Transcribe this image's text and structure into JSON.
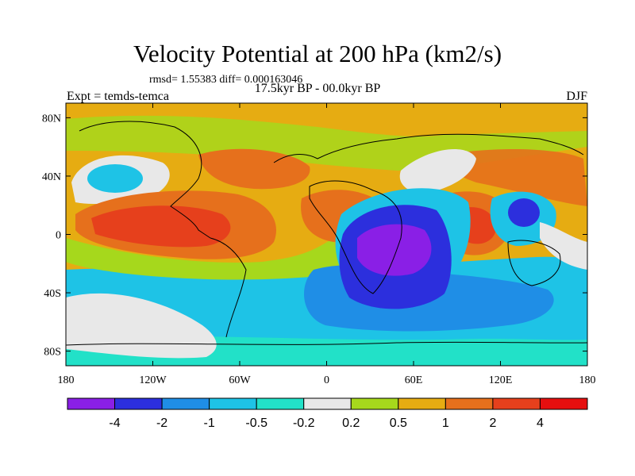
{
  "header": {
    "title": "Velocity Potential at 200 hPa (km2/s)",
    "stats": "rmsd= 1.55383 diff= 0.000163046",
    "period": "17.5kyr BP - 00.0kyr BP",
    "experiment": "Expt = temds-temca",
    "season": "DJF"
  },
  "map": {
    "projection": "cylindrical-equidistant",
    "lon_range": [
      -180,
      180
    ],
    "lat_range": [
      -90,
      90
    ],
    "lon_ticks": [
      {
        "value": -180,
        "label": "180"
      },
      {
        "value": -120,
        "label": "120W"
      },
      {
        "value": -60,
        "label": "60W"
      },
      {
        "value": 0,
        "label": "0"
      },
      {
        "value": 60,
        "label": "60E"
      },
      {
        "value": 120,
        "label": "120E"
      },
      {
        "value": 180,
        "label": "180"
      }
    ],
    "lat_ticks": [
      {
        "value": 80,
        "label": "80N"
      },
      {
        "value": 40,
        "label": "40N"
      },
      {
        "value": 0,
        "label": "0"
      },
      {
        "value": -40,
        "label": "40S"
      },
      {
        "value": -80,
        "label": "80S"
      }
    ]
  },
  "colorbar": {
    "levels": [
      "-4",
      "-2",
      "-1",
      "-0.5",
      "-0.2",
      "0.2",
      "0.5",
      "1",
      "2",
      "4"
    ],
    "colors": [
      "#8a1fe6",
      "#2c2fdd",
      "#1f8ee6",
      "#1ec3e6",
      "#22e1c8",
      "#e8e8e8",
      "#a6d81c",
      "#e6ac12",
      "#e6701c",
      "#e6401c",
      "#e60f0f"
    ]
  }
}
